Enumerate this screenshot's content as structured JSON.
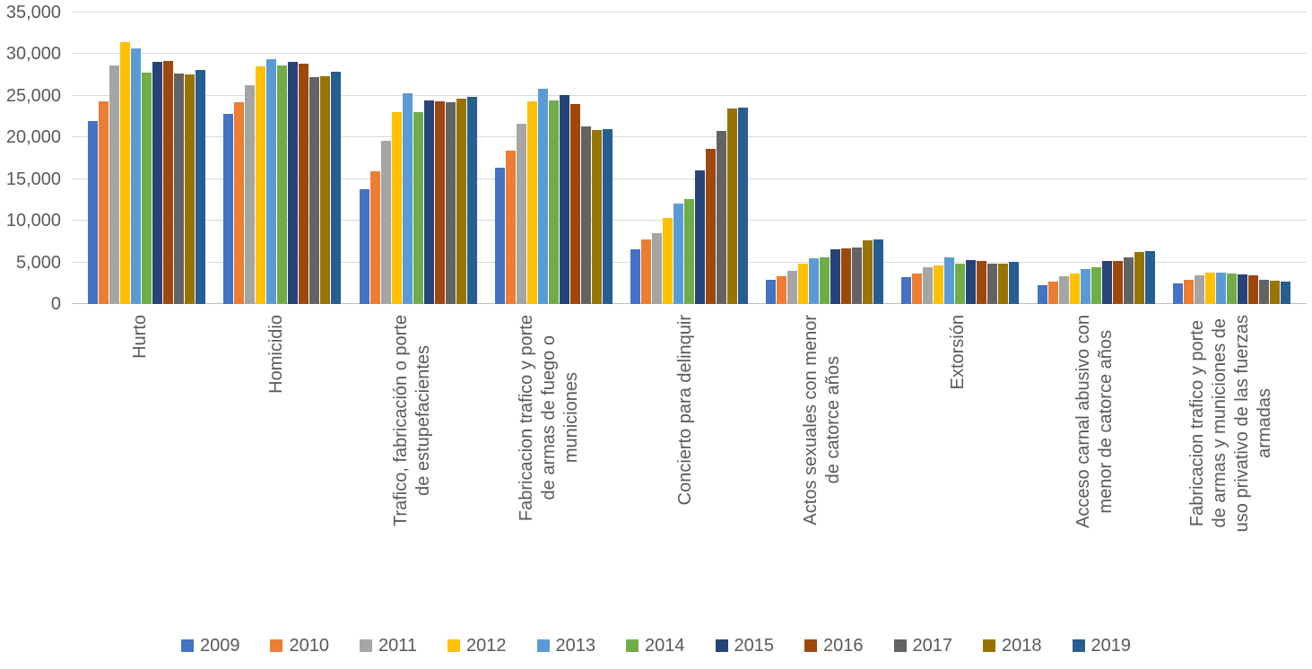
{
  "chart": {
    "background": "#FFFFFF",
    "text_color": "#595959",
    "gridline_color": "#D9D9D9",
    "axis_line_color": "#BFBFBF"
  },
  "chart_data": {
    "type": "bar",
    "title": "",
    "xlabel": "",
    "ylabel": "",
    "ylim": [
      0,
      35000
    ],
    "yticks": [
      0,
      5000,
      10000,
      15000,
      20000,
      25000,
      30000,
      35000
    ],
    "grid": true,
    "legend_position": "bottom",
    "categories": [
      "Hurto",
      "Homicidio",
      "Trafico, fabricación o porte de estupefacientes",
      "Fabricacion trafico y porte de armas de fuego o municiones",
      "Concierto para delinquir",
      "Actos sexuales con menor de catorce años",
      "Extorsión",
      "Acceso carnal abusivo con menor de catorce años",
      "Fabricacion  trafico y porte de armas y municiones de uso privativo de las fuerzas armadas"
    ],
    "category_lines": [
      [
        "Hurto"
      ],
      [
        "Homicidio"
      ],
      [
        "Trafico, fabricación o porte",
        "de estupefacientes"
      ],
      [
        "Fabricacion trafico y porte",
        "de armas de fuego o",
        "municiones"
      ],
      [
        "Concierto para delinquir"
      ],
      [
        "Actos sexuales con menor",
        "de catorce años"
      ],
      [
        "Extorsión"
      ],
      [
        "Acceso carnal abusivo con",
        "menor de catorce años"
      ],
      [
        "Fabricacion  trafico y porte",
        "de armas y municiones de",
        "uso privativo de las fuerzas",
        "armadas"
      ]
    ],
    "series": [
      {
        "name": "2009",
        "color": "#4472C4",
        "values": [
          22000,
          22800,
          13800,
          16400,
          6600,
          2900,
          3200,
          2300,
          2500
        ]
      },
      {
        "name": "2010",
        "color": "#ED7D31",
        "values": [
          24300,
          24200,
          15900,
          18400,
          7800,
          3300,
          3700,
          2700,
          2900
        ]
      },
      {
        "name": "2011",
        "color": "#A5A5A5",
        "values": [
          28700,
          26300,
          19600,
          21600,
          8500,
          4000,
          4400,
          3300,
          3500
        ]
      },
      {
        "name": "2012",
        "color": "#FFC000",
        "values": [
          31500,
          28500,
          23000,
          24300,
          10300,
          4900,
          4600,
          3700,
          3800
        ]
      },
      {
        "name": "2013",
        "color": "#5B9BD5",
        "values": [
          30700,
          29400,
          25300,
          25900,
          12100,
          5500,
          5600,
          4200,
          3800
        ]
      },
      {
        "name": "2014",
        "color": "#70AD47",
        "values": [
          27800,
          28700,
          23100,
          24500,
          12600,
          5600,
          4900,
          4400,
          3700
        ]
      },
      {
        "name": "2015",
        "color": "#264478",
        "values": [
          29100,
          29100,
          24400,
          25100,
          16000,
          6600,
          5300,
          5200,
          3600
        ]
      },
      {
        "name": "2016",
        "color": "#9E480E",
        "values": [
          29200,
          28900,
          24300,
          24000,
          18600,
          6700,
          5200,
          5200,
          3500
        ]
      },
      {
        "name": "2017",
        "color": "#636363",
        "values": [
          27700,
          27200,
          24200,
          21300,
          20800,
          6800,
          4900,
          5600,
          2900
        ]
      },
      {
        "name": "2018",
        "color": "#997300",
        "values": [
          27600,
          27400,
          24700,
          20900,
          23500,
          7600,
          4900,
          6200,
          2800
        ]
      },
      {
        "name": "2019",
        "color": "#255E91",
        "values": [
          28100,
          27900,
          24900,
          21000,
          23600,
          7800,
          5100,
          6400,
          2700
        ]
      }
    ]
  }
}
